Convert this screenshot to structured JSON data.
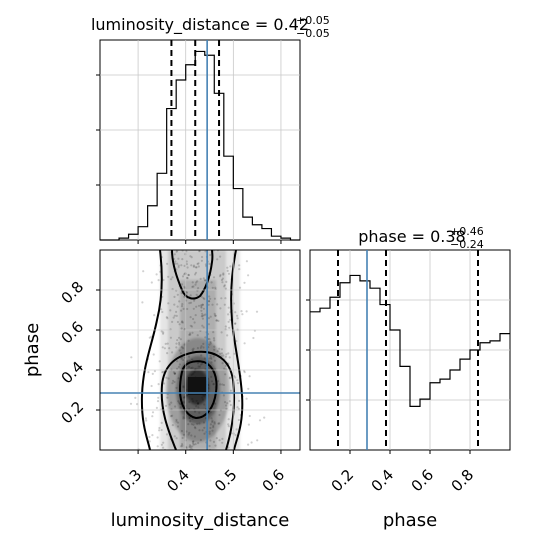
{
  "chart_data": [
    {
      "panel": "luminosity_distance-marginal",
      "type": "histogram-step",
      "title_parts": {
        "label": "luminosity_distance",
        "eq": " = ",
        "value": "0.42",
        "upper": "+0.05",
        "lower": "−0.05"
      },
      "xlim": [
        0.22,
        0.64
      ],
      "ylim": [
        0,
        1.05
      ],
      "x_edges": [
        0.22,
        0.24,
        0.26,
        0.28,
        0.3,
        0.32,
        0.34,
        0.36,
        0.38,
        0.4,
        0.42,
        0.44,
        0.46,
        0.48,
        0.5,
        0.52,
        0.54,
        0.56,
        0.58,
        0.6,
        0.62,
        0.64
      ],
      "counts": [
        0.0,
        0.0,
        0.01,
        0.03,
        0.07,
        0.18,
        0.35,
        0.69,
        0.84,
        0.92,
        0.99,
        0.97,
        0.77,
        0.44,
        0.27,
        0.12,
        0.08,
        0.06,
        0.02,
        0.01,
        0.0
      ],
      "quantile_lines": [
        0.37,
        0.42,
        0.47
      ],
      "truth": 0.445,
      "grid": true
    },
    {
      "panel": "luminosity_distance-phase-2d",
      "type": "scatter-density-contour",
      "xlabel": "luminosity_distance",
      "ylabel": "phase",
      "xlim": [
        0.22,
        0.64
      ],
      "ylim": [
        0.0,
        1.0
      ],
      "x_ticks": [
        "0.3",
        "0.4",
        "0.5",
        "0.6"
      ],
      "x_tick_values": [
        0.3,
        0.4,
        0.5,
        0.6
      ],
      "y_ticks": [
        "0.2",
        "0.4",
        "0.6",
        "0.8"
      ],
      "y_tick_values": [
        0.2,
        0.4,
        0.6,
        0.8
      ],
      "truth_x": 0.445,
      "truth_y": 0.285,
      "grid": true
    },
    {
      "panel": "phase-marginal",
      "type": "histogram-step",
      "xlabel": "phase",
      "title_parts": {
        "label": "phase",
        "eq": " = ",
        "value": "0.38",
        "upper": "+0.46",
        "lower": "−0.24"
      },
      "xlim": [
        0.0,
        1.0
      ],
      "ylim": [
        0,
        1.1
      ],
      "x_ticks": [
        "0.2",
        "0.4",
        "0.6",
        "0.8"
      ],
      "x_tick_values": [
        0.2,
        0.4,
        0.6,
        0.8
      ],
      "x_edges": [
        0.0,
        0.05,
        0.1,
        0.15,
        0.2,
        0.25,
        0.3,
        0.35,
        0.4,
        0.45,
        0.5,
        0.55,
        0.6,
        0.65,
        0.7,
        0.75,
        0.8,
        0.85,
        0.9,
        0.95,
        1.0
      ],
      "counts": [
        0.76,
        0.78,
        0.84,
        0.92,
        0.96,
        0.93,
        0.89,
        0.8,
        0.66,
        0.46,
        0.24,
        0.28,
        0.37,
        0.39,
        0.44,
        0.5,
        0.55,
        0.59,
        0.6,
        0.64
      ],
      "quantile_lines": [
        0.14,
        0.38,
        0.84
      ],
      "truth": 0.285,
      "grid": true
    }
  ],
  "colors": {
    "line": "#000000",
    "truth": "#4682b4",
    "grid": "#c8c8c8",
    "axes": "#000000"
  }
}
